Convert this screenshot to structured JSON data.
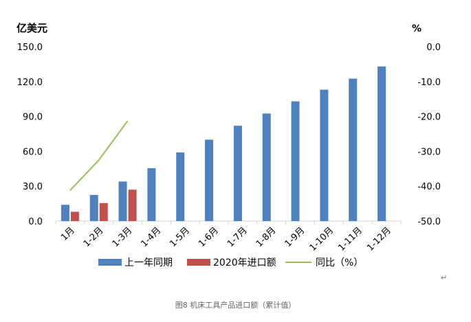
{
  "chart_data": {
    "type": "bar",
    "y_left_unit": "亿美元",
    "y_right_unit": "%",
    "ylim_left": [
      0,
      150
    ],
    "yticks_left": [
      "150.0",
      "120.0",
      "90.0",
      "60.0",
      "30.0",
      "0.0"
    ],
    "ylim_right": [
      -50,
      0
    ],
    "yticks_right": [
      "0.0",
      "-10.0",
      "-20.0",
      "-30.0",
      "-40.0",
      "-50.0"
    ],
    "categories": [
      "1月",
      "1-2月",
      "1-3月",
      "1-4月",
      "1-5月",
      "1-6月",
      "1-7月",
      "1-8月",
      "1-9月",
      "1-10月",
      "1-11月",
      "1-12月"
    ],
    "series": [
      {
        "name": "上一年同期",
        "kind": "bar",
        "axis": "left",
        "color": "#4F81BD",
        "values": [
          14,
          22.5,
          34,
          45.5,
          59,
          70,
          82,
          92.5,
          103,
          113,
          122.5,
          133
        ]
      },
      {
        "name": "2020年进口额",
        "kind": "bar",
        "axis": "left",
        "color": "#C0504D",
        "values": [
          8,
          15.5,
          27,
          null,
          null,
          null,
          null,
          null,
          null,
          null,
          null,
          null
        ]
      },
      {
        "name": "同比（%）",
        "kind": "line",
        "axis": "right",
        "color": "#9BBB59",
        "values": [
          -41.2,
          -32.5,
          -21.3,
          null,
          null,
          null,
          null,
          null,
          null,
          null,
          null,
          null
        ]
      }
    ],
    "legend_position": "bottom",
    "grid": false
  },
  "caption": "图8      机床工具产品进口额（累计值）",
  "return_mark": "↵"
}
